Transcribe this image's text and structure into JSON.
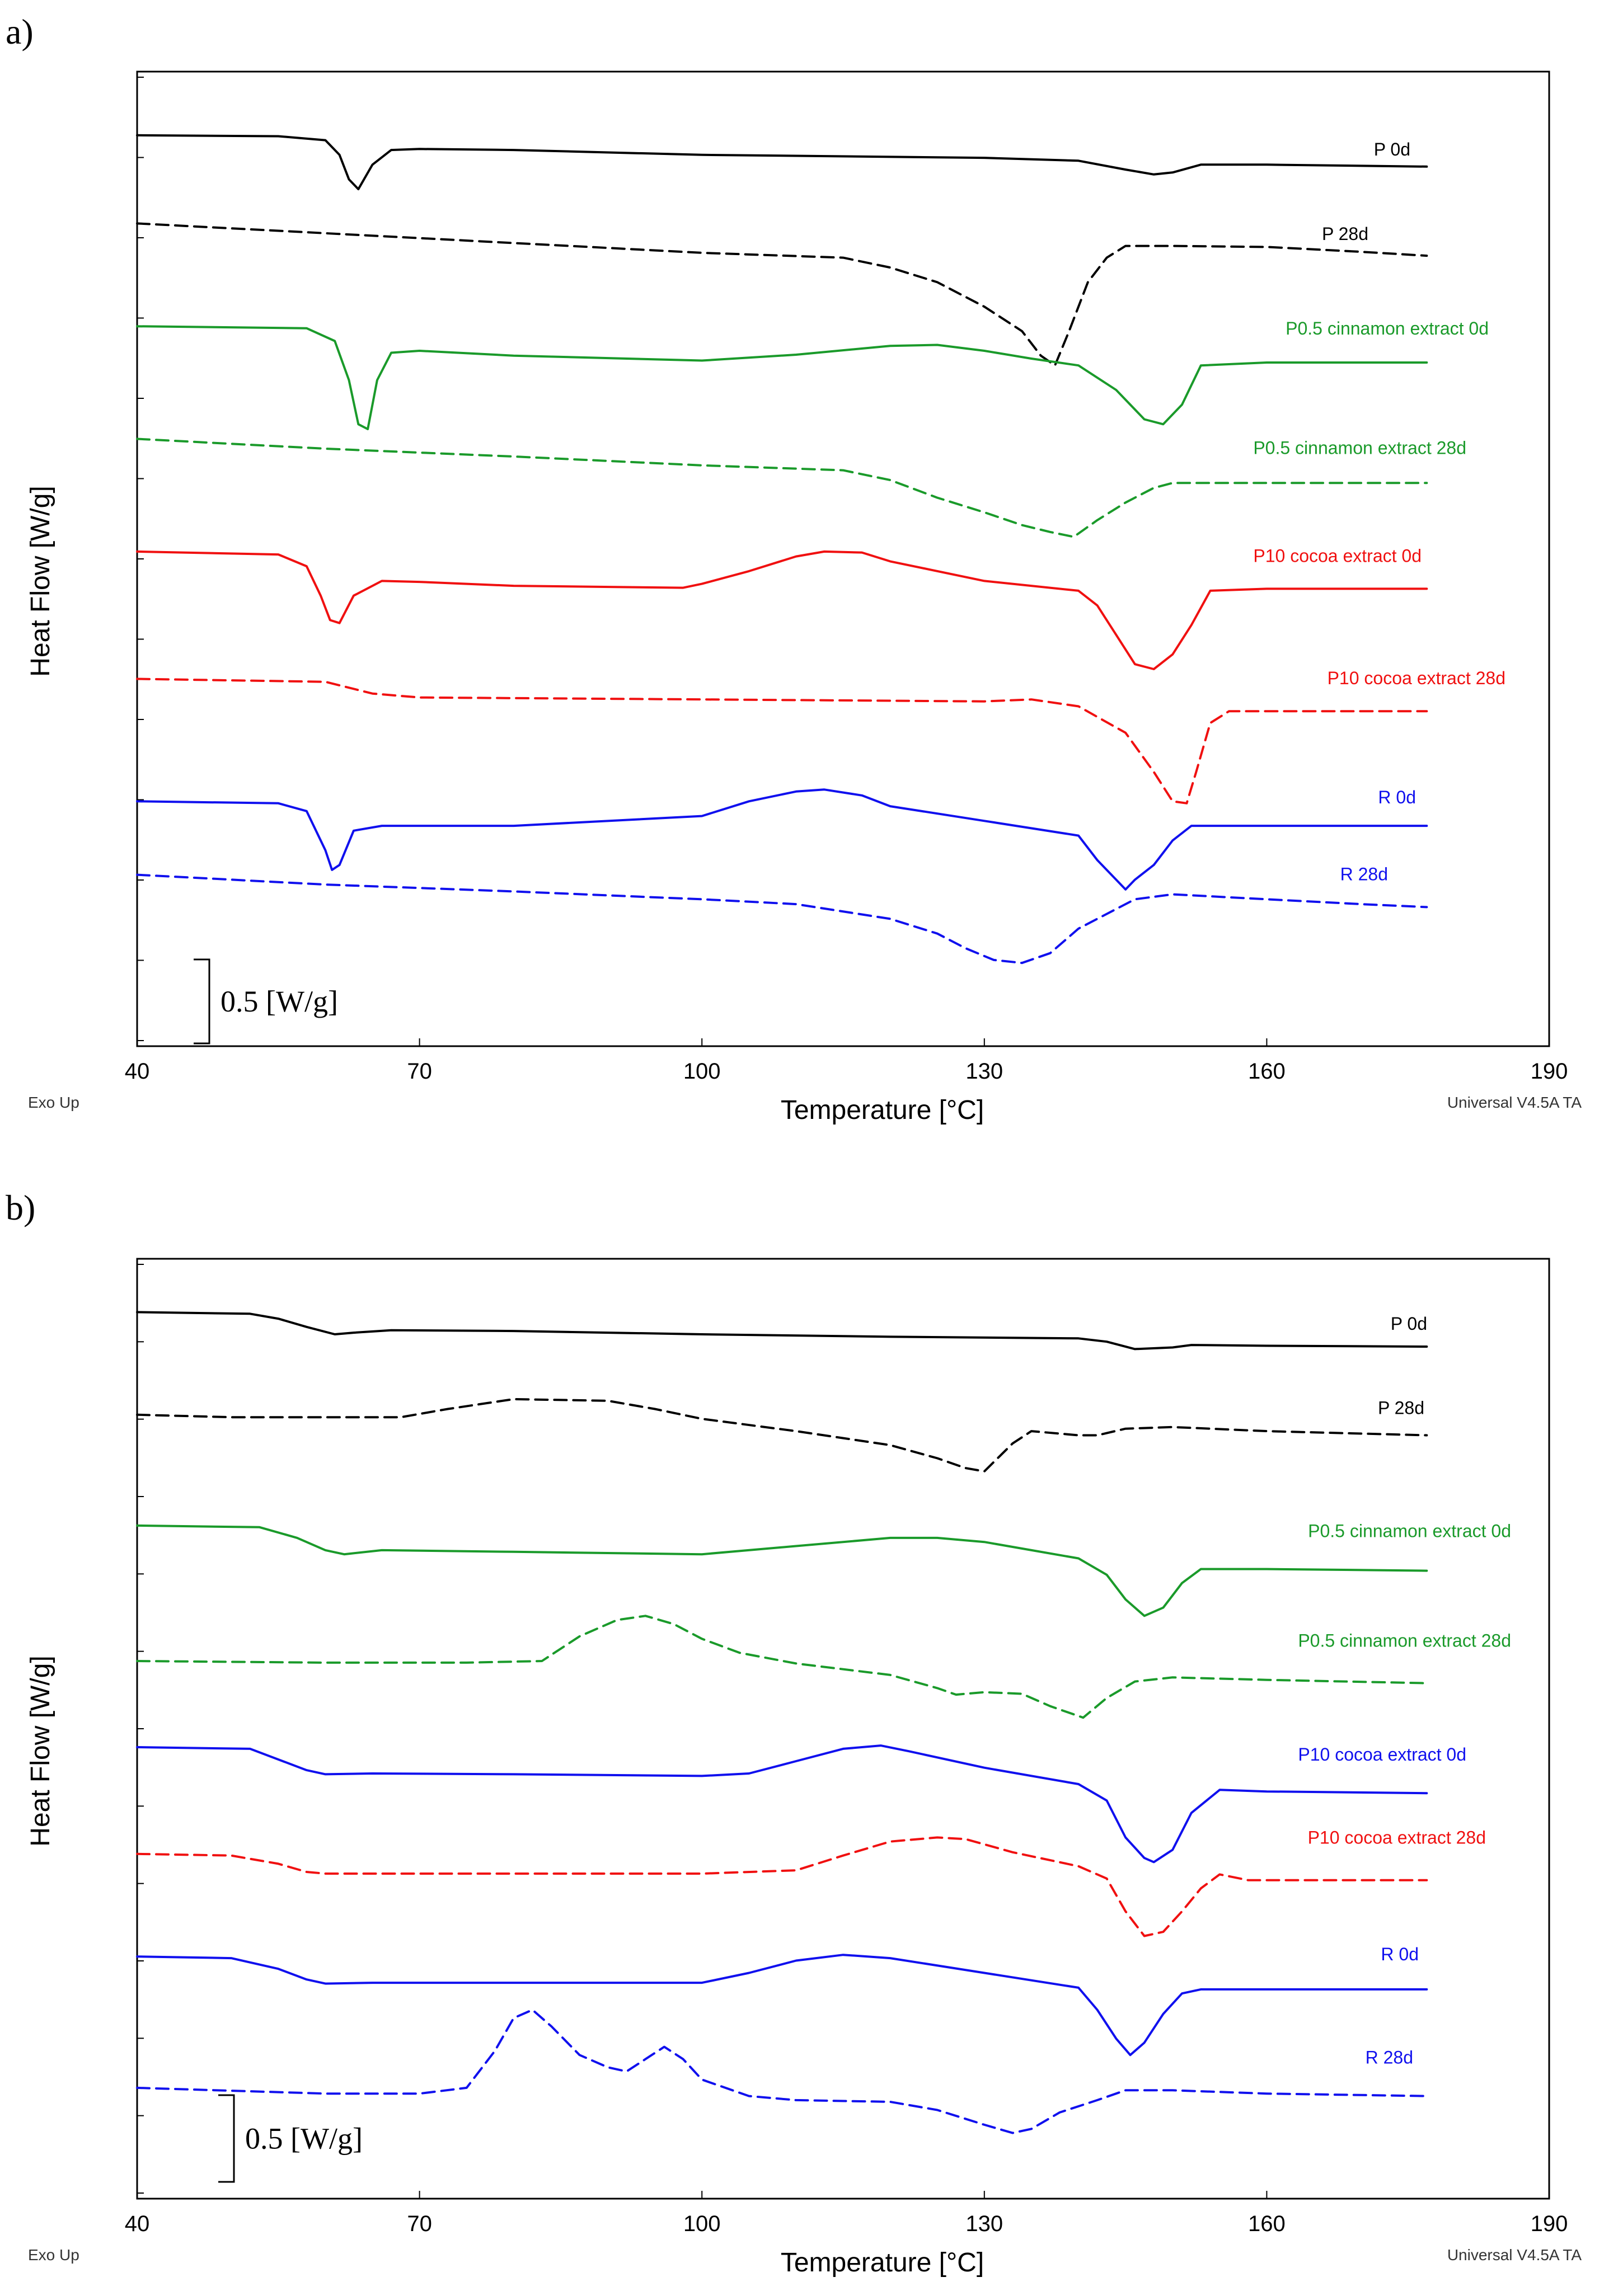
{
  "colors": {
    "black": "#000000",
    "green": "#1a9a2a",
    "red": "#f01010",
    "blue": "#1010ee"
  },
  "chart_data": [
    {
      "panel": "a)",
      "type": "line",
      "xlabel": "Temperature [°C]",
      "ylabel": "Heat Flow [W/g]",
      "xlim": [
        40,
        190
      ],
      "xticks": [
        40,
        70,
        100,
        130,
        160,
        190
      ],
      "footer_left": "Exo Up",
      "footer_right": "Universal V4.5A TA",
      "scale_bar": "0.5 [W/g]",
      "series": [
        {
          "name": "P 0d",
          "color": "#000000",
          "dash": false,
          "x": [
            40,
            55,
            60,
            61.5,
            62.5,
            63.5,
            65,
            67,
            70,
            80,
            100,
            130,
            140,
            145,
            148,
            150,
            153,
            160,
            177
          ],
          "y": [
            0.0,
            -0.01,
            -0.05,
            -0.2,
            -0.45,
            -0.55,
            -0.3,
            -0.15,
            -0.14,
            -0.15,
            -0.2,
            -0.23,
            -0.26,
            -0.35,
            -0.4,
            -0.38,
            -0.3,
            -0.3,
            -0.32
          ]
        },
        {
          "name": "P 28d",
          "color": "#000000",
          "dash": true,
          "x": [
            40,
            60,
            80,
            100,
            115,
            120,
            125,
            130,
            134,
            136,
            137.5,
            139,
            141,
            143,
            145,
            150,
            160,
            170,
            177
          ],
          "y": [
            -0.9,
            -1.0,
            -1.1,
            -1.2,
            -1.25,
            -1.35,
            -1.5,
            -1.75,
            -2.0,
            -2.25,
            -2.35,
            -2.0,
            -1.5,
            -1.25,
            -1.13,
            -1.13,
            -1.14,
            -1.19,
            -1.23
          ]
        },
        {
          "name": "P0.5 cinnamon extract 0d",
          "color": "#1a9a2a",
          "dash": false,
          "x": [
            40,
            58,
            61,
            62.5,
            63.5,
            64.5,
            65.5,
            67,
            70,
            80,
            100,
            110,
            120,
            125,
            130,
            135,
            140,
            144,
            147,
            149,
            151,
            153,
            160,
            177
          ],
          "y": [
            -1.95,
            -1.97,
            -2.1,
            -2.5,
            -2.95,
            -3.0,
            -2.5,
            -2.22,
            -2.2,
            -2.25,
            -2.3,
            -2.24,
            -2.15,
            -2.14,
            -2.2,
            -2.28,
            -2.35,
            -2.6,
            -2.9,
            -2.95,
            -2.75,
            -2.35,
            -2.32,
            -2.32
          ]
        },
        {
          "name": "P0.5 cinnamon extract 28d",
          "color": "#1a9a2a",
          "dash": true,
          "x": [
            40,
            60,
            80,
            100,
            115,
            120,
            125,
            130,
            134,
            137,
            139.5,
            142,
            145,
            148,
            150,
            177
          ],
          "y": [
            -3.1,
            -3.2,
            -3.28,
            -3.37,
            -3.42,
            -3.52,
            -3.7,
            -3.85,
            -3.98,
            -4.05,
            -4.1,
            -3.93,
            -3.75,
            -3.6,
            -3.55,
            -3.55
          ]
        },
        {
          "name": "P10 cocoa extract 0d",
          "color": "#f01010",
          "dash": false,
          "x": [
            40,
            55,
            58,
            59.5,
            60.5,
            61.5,
            63,
            66,
            70,
            80,
            98,
            100,
            105,
            110,
            113,
            117,
            120,
            130,
            140,
            142,
            144,
            146,
            148,
            150,
            152,
            154,
            160,
            177
          ],
          "y": [
            -4.25,
            -4.28,
            -4.4,
            -4.7,
            -4.95,
            -4.98,
            -4.7,
            -4.55,
            -4.56,
            -4.6,
            -4.62,
            -4.58,
            -4.45,
            -4.3,
            -4.25,
            -4.26,
            -4.35,
            -4.55,
            -4.65,
            -4.8,
            -5.1,
            -5.4,
            -5.45,
            -5.3,
            -5.0,
            -4.65,
            -4.63,
            -4.63
          ]
        },
        {
          "name": "P10 cocoa extract 28d",
          "color": "#f01010",
          "dash": true,
          "x": [
            40,
            60,
            65,
            70,
            100,
            130,
            135,
            140,
            145,
            148,
            150,
            151.5,
            152.5,
            154,
            156,
            160,
            177
          ],
          "y": [
            -5.55,
            -5.58,
            -5.7,
            -5.74,
            -5.76,
            -5.78,
            -5.76,
            -5.83,
            -6.1,
            -6.5,
            -6.8,
            -6.82,
            -6.5,
            -6.0,
            -5.88,
            -5.88,
            -5.88
          ]
        },
        {
          "name": "R 0d",
          "color": "#1010ee",
          "dash": false,
          "x": [
            40,
            55,
            58,
            60,
            60.7,
            61.5,
            63,
            66,
            70,
            80,
            100,
            105,
            110,
            113,
            117,
            120,
            130,
            140,
            142,
            144,
            145,
            146,
            148,
            150,
            152,
            160,
            177
          ],
          "y": [
            -6.8,
            -6.82,
            -6.9,
            -7.3,
            -7.5,
            -7.45,
            -7.1,
            -7.05,
            -7.05,
            -7.05,
            -6.95,
            -6.8,
            -6.7,
            -6.68,
            -6.74,
            -6.85,
            -7.0,
            -7.15,
            -7.4,
            -7.6,
            -7.7,
            -7.6,
            -7.45,
            -7.2,
            -7.05,
            -7.05,
            -7.05
          ]
        },
        {
          "name": "R 28d",
          "color": "#1010ee",
          "dash": true,
          "x": [
            40,
            60,
            80,
            100,
            110,
            120,
            125,
            128,
            131,
            134,
            137,
            140,
            143,
            146,
            150,
            160,
            170,
            177
          ],
          "y": [
            -7.55,
            -7.65,
            -7.72,
            -7.8,
            -7.85,
            -8.0,
            -8.15,
            -8.3,
            -8.42,
            -8.45,
            -8.35,
            -8.1,
            -7.95,
            -7.8,
            -7.75,
            -7.8,
            -7.85,
            -7.88
          ]
        }
      ]
    },
    {
      "panel": "b)",
      "type": "line",
      "xlabel": "Temperature [°C]",
      "ylabel": "Heat Flow [W/g]",
      "xlim": [
        40,
        190
      ],
      "xticks": [
        40,
        70,
        100,
        130,
        160,
        190
      ],
      "footer_left": "Exo Up",
      "footer_right": "Universal V4.5A TA",
      "scale_bar": "0.5 [W/g]",
      "series": [
        {
          "name": "P 0d",
          "color": "#000000",
          "dash": false,
          "x": [
            40,
            52,
            55,
            58,
            61,
            63,
            67,
            80,
            100,
            120,
            140,
            143,
            146,
            150,
            152,
            160,
            177
          ],
          "y": [
            0.0,
            -0.02,
            -0.08,
            -0.18,
            -0.27,
            -0.25,
            -0.22,
            -0.23,
            -0.27,
            -0.3,
            -0.32,
            -0.36,
            -0.45,
            -0.43,
            -0.4,
            -0.41,
            -0.42
          ]
        },
        {
          "name": "P 28d",
          "color": "#000000",
          "dash": true,
          "x": [
            40,
            50,
            68,
            73,
            80,
            90,
            95,
            100,
            110,
            120,
            125,
            128,
            130,
            133,
            135,
            140,
            142,
            145,
            150,
            160,
            177
          ],
          "y": [
            -1.25,
            -1.28,
            -1.28,
            -1.18,
            -1.06,
            -1.08,
            -1.18,
            -1.3,
            -1.45,
            -1.62,
            -1.78,
            -1.9,
            -1.94,
            -1.6,
            -1.45,
            -1.5,
            -1.5,
            -1.42,
            -1.4,
            -1.45,
            -1.5
          ]
        },
        {
          "name": "P0.5 cinnamon extract 0d",
          "color": "#1a9a2a",
          "dash": false,
          "x": [
            40,
            53,
            57,
            60,
            62,
            66,
            80,
            100,
            110,
            120,
            125,
            130,
            135,
            140,
            143,
            145,
            147,
            149,
            151,
            153,
            160,
            177
          ],
          "y": [
            -2.6,
            -2.62,
            -2.75,
            -2.9,
            -2.95,
            -2.9,
            -2.92,
            -2.95,
            -2.85,
            -2.75,
            -2.75,
            -2.8,
            -2.9,
            -3.0,
            -3.2,
            -3.5,
            -3.7,
            -3.6,
            -3.3,
            -3.13,
            -3.13,
            -3.15
          ]
        },
        {
          "name": "P0.5 cinnamon extract 28d",
          "color": "#1a9a2a",
          "dash": true,
          "x": [
            40,
            60,
            75,
            83,
            87,
            91,
            94,
            97,
            100,
            104,
            110,
            120,
            125,
            127,
            130,
            134,
            137,
            140.5,
            143,
            146,
            150,
            160,
            177
          ],
          "y": [
            -4.25,
            -4.27,
            -4.27,
            -4.25,
            -3.95,
            -3.75,
            -3.7,
            -3.8,
            -3.98,
            -4.15,
            -4.28,
            -4.42,
            -4.58,
            -4.66,
            -4.63,
            -4.65,
            -4.8,
            -4.94,
            -4.7,
            -4.5,
            -4.45,
            -4.48,
            -4.52
          ]
        },
        {
          "name": "P10 cocoa extract 0d",
          "color": "#1010ee",
          "dash": false,
          "x": [
            40,
            52,
            55,
            58,
            60,
            65,
            80,
            100,
            105,
            110,
            115,
            119,
            122,
            130,
            140,
            143,
            145,
            147,
            148,
            150,
            152,
            155,
            160,
            177
          ],
          "y": [
            -5.3,
            -5.32,
            -5.45,
            -5.58,
            -5.63,
            -5.62,
            -5.63,
            -5.65,
            -5.62,
            -5.47,
            -5.32,
            -5.28,
            -5.35,
            -5.55,
            -5.75,
            -5.95,
            -6.4,
            -6.65,
            -6.7,
            -6.55,
            -6.1,
            -5.82,
            -5.84,
            -5.86
          ]
        },
        {
          "name": "P10 cocoa extract 28d",
          "color": "#f01010",
          "dash": true,
          "x": [
            40,
            50,
            55,
            58,
            60,
            65,
            80,
            100,
            110,
            115,
            120,
            125,
            128,
            133,
            140,
            143,
            145,
            147,
            149,
            151,
            153,
            155,
            158,
            177
          ],
          "y": [
            -6.6,
            -6.62,
            -6.72,
            -6.82,
            -6.84,
            -6.84,
            -6.84,
            -6.84,
            -6.8,
            -6.62,
            -6.45,
            -6.4,
            -6.42,
            -6.58,
            -6.75,
            -6.9,
            -7.3,
            -7.6,
            -7.55,
            -7.3,
            -7.02,
            -6.85,
            -6.92,
            -6.92
          ]
        },
        {
          "name": "R 0d",
          "color": "#1010ee",
          "dash": false,
          "x": [
            40,
            50,
            55,
            58,
            60,
            65,
            80,
            100,
            105,
            110,
            115,
            120,
            130,
            140,
            142,
            144,
            145.5,
            147,
            149,
            151,
            153,
            160,
            177
          ],
          "y": [
            -7.85,
            -7.87,
            -8.0,
            -8.13,
            -8.18,
            -8.17,
            -8.17,
            -8.17,
            -8.05,
            -7.9,
            -7.83,
            -7.87,
            -8.05,
            -8.23,
            -8.5,
            -8.85,
            -9.05,
            -8.9,
            -8.55,
            -8.3,
            -8.25,
            -8.25,
            -8.25
          ]
        },
        {
          "name": "R 28d",
          "color": "#1010ee",
          "dash": true,
          "x": [
            40,
            60,
            70,
            75,
            78,
            80,
            82,
            84,
            87,
            90,
            92,
            94,
            96,
            98,
            100,
            105,
            110,
            120,
            125,
            130,
            133,
            135,
            138,
            142,
            145,
            150,
            160,
            177
          ],
          "y": [
            -9.45,
            -9.52,
            -9.52,
            -9.45,
            -9.0,
            -8.6,
            -8.5,
            -8.7,
            -9.05,
            -9.2,
            -9.25,
            -9.1,
            -8.95,
            -9.1,
            -9.35,
            -9.55,
            -9.6,
            -9.62,
            -9.72,
            -9.9,
            -10.0,
            -9.95,
            -9.75,
            -9.6,
            -9.48,
            -9.48,
            -9.52,
            -9.55
          ]
        }
      ]
    }
  ]
}
